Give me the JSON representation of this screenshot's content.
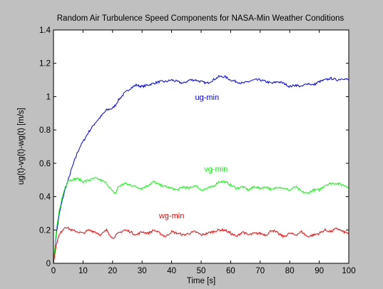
{
  "chart_data": {
    "type": "line",
    "title": "Random Air Turbulence Speed Components for NASA-Min Weather Conditions",
    "xlabel": "Time [s]",
    "ylabel": "ug(t)-vg(t)-wg(t) [m/s]",
    "xlim": [
      0,
      100
    ],
    "ylim": [
      0,
      1.4
    ],
    "xticks": [
      0,
      10,
      20,
      30,
      40,
      50,
      60,
      70,
      80,
      90,
      100
    ],
    "yticks": [
      0,
      0.2,
      0.4,
      0.6,
      0.8,
      1,
      1.2,
      1.4
    ],
    "grid": false,
    "background_color": "#c0c0c0",
    "plot_background_color": "#ffffff",
    "series": [
      {
        "name": "ug-min",
        "color": "#0000ff",
        "annotation_at": [
          52,
          0.98
        ],
        "x": [
          0,
          1,
          2,
          3,
          4,
          5,
          6,
          7,
          8,
          9,
          10,
          12,
          14,
          16,
          18,
          20,
          21,
          22,
          24,
          26,
          28,
          30,
          32,
          34,
          36,
          38,
          40,
          42,
          44,
          46,
          48,
          50,
          52,
          54,
          56,
          58,
          60,
          62,
          64,
          66,
          68,
          70,
          72,
          74,
          76,
          78,
          80,
          82,
          84,
          86,
          88,
          90,
          92,
          94,
          96,
          98,
          100
        ],
        "y": [
          0.0,
          0.18,
          0.3,
          0.38,
          0.45,
          0.5,
          0.56,
          0.61,
          0.66,
          0.7,
          0.73,
          0.79,
          0.84,
          0.88,
          0.92,
          0.93,
          0.95,
          0.98,
          1.02,
          1.05,
          1.07,
          1.06,
          1.07,
          1.08,
          1.09,
          1.09,
          1.1,
          1.09,
          1.08,
          1.1,
          1.1,
          1.09,
          1.08,
          1.1,
          1.12,
          1.12,
          1.1,
          1.09,
          1.08,
          1.09,
          1.1,
          1.1,
          1.09,
          1.08,
          1.09,
          1.08,
          1.06,
          1.07,
          1.06,
          1.08,
          1.07,
          1.09,
          1.1,
          1.11,
          1.1,
          1.11,
          1.1
        ]
      },
      {
        "name": "vg-min",
        "color": "#00ff00",
        "annotation_at": [
          55,
          0.55
        ],
        "x": [
          0,
          1,
          2,
          3,
          4,
          5,
          6,
          8,
          10,
          12,
          14,
          16,
          18,
          20,
          21,
          22,
          24,
          26,
          28,
          30,
          32,
          34,
          36,
          38,
          40,
          42,
          44,
          46,
          48,
          50,
          52,
          54,
          56,
          58,
          60,
          62,
          64,
          66,
          68,
          70,
          72,
          74,
          76,
          78,
          80,
          82,
          84,
          86,
          88,
          90,
          92,
          94,
          96,
          98,
          100
        ],
        "y": [
          0.0,
          0.2,
          0.32,
          0.4,
          0.46,
          0.5,
          0.5,
          0.51,
          0.49,
          0.5,
          0.51,
          0.5,
          0.48,
          0.43,
          0.42,
          0.46,
          0.48,
          0.47,
          0.46,
          0.45,
          0.47,
          0.49,
          0.47,
          0.46,
          0.45,
          0.44,
          0.46,
          0.45,
          0.47,
          0.44,
          0.45,
          0.46,
          0.49,
          0.49,
          0.47,
          0.45,
          0.46,
          0.44,
          0.46,
          0.45,
          0.46,
          0.44,
          0.46,
          0.45,
          0.44,
          0.46,
          0.43,
          0.42,
          0.44,
          0.44,
          0.47,
          0.48,
          0.48,
          0.47,
          0.46
        ]
      },
      {
        "name": "wg-min",
        "color": "#ff0000",
        "annotation_at": [
          40,
          0.27
        ],
        "x": [
          0,
          1,
          2,
          3,
          4,
          5,
          6,
          8,
          10,
          12,
          14,
          16,
          18,
          20,
          22,
          24,
          26,
          28,
          30,
          32,
          34,
          36,
          38,
          40,
          42,
          44,
          46,
          48,
          50,
          52,
          54,
          56,
          58,
          60,
          62,
          64,
          66,
          68,
          70,
          72,
          74,
          76,
          78,
          80,
          82,
          84,
          86,
          88,
          90,
          92,
          94,
          96,
          98,
          100
        ],
        "y": [
          0.0,
          0.12,
          0.17,
          0.2,
          0.22,
          0.21,
          0.2,
          0.19,
          0.18,
          0.2,
          0.19,
          0.17,
          0.2,
          0.15,
          0.18,
          0.2,
          0.19,
          0.17,
          0.19,
          0.18,
          0.2,
          0.18,
          0.16,
          0.19,
          0.18,
          0.17,
          0.18,
          0.19,
          0.17,
          0.18,
          0.19,
          0.2,
          0.2,
          0.18,
          0.16,
          0.19,
          0.17,
          0.18,
          0.18,
          0.17,
          0.2,
          0.18,
          0.16,
          0.18,
          0.17,
          0.19,
          0.16,
          0.17,
          0.18,
          0.2,
          0.19,
          0.21,
          0.19,
          0.18
        ]
      }
    ]
  }
}
